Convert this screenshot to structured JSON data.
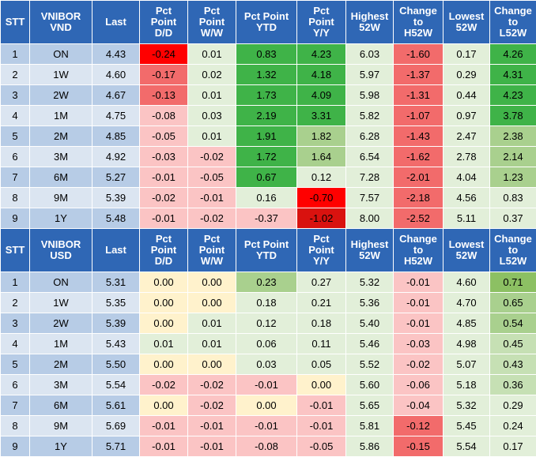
{
  "colors": {
    "header_bg": "#2f67b5",
    "row_light": "#dbe5f1",
    "row_dark": "#b7cce6",
    "neg_strong": "#ff0000",
    "neg_medium": "#f26b6b",
    "neg_light": "#fbc4c4",
    "neutral": "#fff2cc",
    "pos_light": "#e2efd9",
    "pos_medium": "#a9d08e",
    "pos_strong": "#3fb348"
  },
  "tables": [
    {
      "headers": [
        "STT",
        "VNIBOR\nVND",
        "Last",
        "Pct\nPoint\nD/D",
        "Pct\nPoint\nW/W",
        "Pct Point\nYTD",
        "Pct\nPoint\nY/Y",
        "Highest\n52W",
        "Change\nto\nH52W",
        "Lowest\n52W",
        "Change\nto\nL52W"
      ],
      "rows": [
        {
          "stt": "1",
          "tenor": "ON",
          "last": "4.43",
          "dd": "-0.24",
          "ww": "0.01",
          "ytd": "0.83",
          "yy": "4.23",
          "h52": "6.03",
          "ch52": "-1.60",
          "l52": "0.17",
          "cl52": "4.26"
        },
        {
          "stt": "2",
          "tenor": "1W",
          "last": "4.60",
          "dd": "-0.17",
          "ww": "0.02",
          "ytd": "1.32",
          "yy": "4.18",
          "h52": "5.97",
          "ch52": "-1.37",
          "l52": "0.29",
          "cl52": "4.31"
        },
        {
          "stt": "3",
          "tenor": "2W",
          "last": "4.67",
          "dd": "-0.13",
          "ww": "0.01",
          "ytd": "1.73",
          "yy": "4.09",
          "h52": "5.98",
          "ch52": "-1.31",
          "l52": "0.44",
          "cl52": "4.23"
        },
        {
          "stt": "4",
          "tenor": "1M",
          "last": "4.75",
          "dd": "-0.08",
          "ww": "0.03",
          "ytd": "2.19",
          "yy": "3.31",
          "h52": "5.82",
          "ch52": "-1.07",
          "l52": "0.97",
          "cl52": "3.78"
        },
        {
          "stt": "5",
          "tenor": "2M",
          "last": "4.85",
          "dd": "-0.05",
          "ww": "0.01",
          "ytd": "1.91",
          "yy": "1.82",
          "h52": "6.28",
          "ch52": "-1.43",
          "l52": "2.47",
          "cl52": "2.38"
        },
        {
          "stt": "6",
          "tenor": "3M",
          "last": "4.92",
          "dd": "-0.03",
          "ww": "-0.02",
          "ytd": "1.72",
          "yy": "1.64",
          "h52": "6.54",
          "ch52": "-1.62",
          "l52": "2.78",
          "cl52": "2.14"
        },
        {
          "stt": "7",
          "tenor": "6M",
          "last": "5.27",
          "dd": "-0.01",
          "ww": "-0.05",
          "ytd": "0.67",
          "yy": "0.12",
          "h52": "7.28",
          "ch52": "-2.01",
          "l52": "4.04",
          "cl52": "1.23"
        },
        {
          "stt": "8",
          "tenor": "9M",
          "last": "5.39",
          "dd": "-0.02",
          "ww": "-0.01",
          "ytd": "0.16",
          "yy": "-0.70",
          "h52": "7.57",
          "ch52": "-2.18",
          "l52": "4.56",
          "cl52": "0.83"
        },
        {
          "stt": "9",
          "tenor": "1Y",
          "last": "5.48",
          "dd": "-0.01",
          "ww": "-0.02",
          "ytd": "-0.37",
          "yy": "-1.02",
          "h52": "8.00",
          "ch52": "-2.52",
          "l52": "5.11",
          "cl52": "0.37"
        }
      ],
      "cell_colors": [
        {
          "dd": "#ff0000",
          "ww": "#e2efd9",
          "ytd": "#3fb348",
          "yy": "#3fb348",
          "h52": "#e2efd9",
          "ch52": "#f26b6b",
          "l52": "#e2efd9",
          "cl52": "#3fb348"
        },
        {
          "dd": "#f26b6b",
          "ww": "#e2efd9",
          "ytd": "#3fb348",
          "yy": "#3fb348",
          "h52": "#e2efd9",
          "ch52": "#f26b6b",
          "l52": "#e2efd9",
          "cl52": "#3fb348"
        },
        {
          "dd": "#f26b6b",
          "ww": "#e2efd9",
          "ytd": "#3fb348",
          "yy": "#3fb348",
          "h52": "#e2efd9",
          "ch52": "#f26b6b",
          "l52": "#e2efd9",
          "cl52": "#3fb348"
        },
        {
          "dd": "#fbc4c4",
          "ww": "#e2efd9",
          "ytd": "#3fb348",
          "yy": "#3fb348",
          "h52": "#e2efd9",
          "ch52": "#f26b6b",
          "l52": "#e2efd9",
          "cl52": "#3fb348"
        },
        {
          "dd": "#fbc4c4",
          "ww": "#e2efd9",
          "ytd": "#3fb348",
          "yy": "#a9d08e",
          "h52": "#e2efd9",
          "ch52": "#f26b6b",
          "l52": "#e2efd9",
          "cl52": "#a9d08e"
        },
        {
          "dd": "#fbc4c4",
          "ww": "#fbc4c4",
          "ytd": "#3fb348",
          "yy": "#a9d08e",
          "h52": "#e2efd9",
          "ch52": "#f26b6b",
          "l52": "#e2efd9",
          "cl52": "#a9d08e"
        },
        {
          "dd": "#fbc4c4",
          "ww": "#fbc4c4",
          "ytd": "#3fb348",
          "yy": "#e2efd9",
          "h52": "#e2efd9",
          "ch52": "#f26b6b",
          "l52": "#e2efd9",
          "cl52": "#a9d08e"
        },
        {
          "dd": "#fbc4c4",
          "ww": "#fbc4c4",
          "ytd": "#e2efd9",
          "yy": "#ff0000",
          "h52": "#e2efd9",
          "ch52": "#f26b6b",
          "l52": "#e2efd9",
          "cl52": "#e2efd9"
        },
        {
          "dd": "#fbc4c4",
          "ww": "#fbc4c4",
          "ytd": "#fbc4c4",
          "yy": "#d9120f",
          "h52": "#e2efd9",
          "ch52": "#f26b6b",
          "l52": "#e2efd9",
          "cl52": "#e2efd9"
        }
      ]
    },
    {
      "headers": [
        "STT",
        "VNIBOR\nUSD",
        "Last",
        "Pct\nPoint\nD/D",
        "Pct\nPoint\nW/W",
        "Pct Point\nYTD",
        "Pct\nPoint\nY/Y",
        "Highest\n52W",
        "Change\nto\nH52W",
        "Lowest\n52W",
        "Change\nto\nL52W"
      ],
      "rows": [
        {
          "stt": "1",
          "tenor": "ON",
          "last": "5.31",
          "dd": "0.00",
          "ww": "0.00",
          "ytd": "0.23",
          "yy": "0.27",
          "h52": "5.32",
          "ch52": "-0.01",
          "l52": "4.60",
          "cl52": "0.71"
        },
        {
          "stt": "2",
          "tenor": "1W",
          "last": "5.35",
          "dd": "0.00",
          "ww": "0.00",
          "ytd": "0.18",
          "yy": "0.21",
          "h52": "5.36",
          "ch52": "-0.01",
          "l52": "4.70",
          "cl52": "0.65"
        },
        {
          "stt": "3",
          "tenor": "2W",
          "last": "5.39",
          "dd": "0.00",
          "ww": "0.01",
          "ytd": "0.12",
          "yy": "0.18",
          "h52": "5.40",
          "ch52": "-0.01",
          "l52": "4.85",
          "cl52": "0.54"
        },
        {
          "stt": "4",
          "tenor": "1M",
          "last": "5.43",
          "dd": "0.01",
          "ww": "0.01",
          "ytd": "0.06",
          "yy": "0.11",
          "h52": "5.46",
          "ch52": "-0.03",
          "l52": "4.98",
          "cl52": "0.45"
        },
        {
          "stt": "5",
          "tenor": "2M",
          "last": "5.50",
          "dd": "0.00",
          "ww": "0.00",
          "ytd": "0.03",
          "yy": "0.05",
          "h52": "5.52",
          "ch52": "-0.02",
          "l52": "5.07",
          "cl52": "0.43"
        },
        {
          "stt": "6",
          "tenor": "3M",
          "last": "5.54",
          "dd": "-0.02",
          "ww": "-0.02",
          "ytd": "-0.01",
          "yy": "0.00",
          "h52": "5.60",
          "ch52": "-0.06",
          "l52": "5.18",
          "cl52": "0.36"
        },
        {
          "stt": "7",
          "tenor": "6M",
          "last": "5.61",
          "dd": "0.00",
          "ww": "-0.02",
          "ytd": "0.00",
          "yy": "-0.01",
          "h52": "5.65",
          "ch52": "-0.04",
          "l52": "5.32",
          "cl52": "0.29"
        },
        {
          "stt": "8",
          "tenor": "9M",
          "last": "5.69",
          "dd": "-0.01",
          "ww": "-0.01",
          "ytd": "-0.01",
          "yy": "-0.01",
          "h52": "5.81",
          "ch52": "-0.12",
          "l52": "5.45",
          "cl52": "0.24"
        },
        {
          "stt": "9",
          "tenor": "1Y",
          "last": "5.71",
          "dd": "-0.01",
          "ww": "-0.01",
          "ytd": "-0.08",
          "yy": "-0.05",
          "h52": "5.86",
          "ch52": "-0.15",
          "l52": "5.54",
          "cl52": "0.17"
        }
      ],
      "cell_colors": [
        {
          "dd": "#fff2cc",
          "ww": "#fff2cc",
          "ytd": "#a9d08e",
          "yy": "#e2efd9",
          "h52": "#e2efd9",
          "ch52": "#fbc4c4",
          "l52": "#e2efd9",
          "cl52": "#8cc063"
        },
        {
          "dd": "#fff2cc",
          "ww": "#fff2cc",
          "ytd": "#e2efd9",
          "yy": "#e2efd9",
          "h52": "#e2efd9",
          "ch52": "#fbc4c4",
          "l52": "#e2efd9",
          "cl52": "#a9d08e"
        },
        {
          "dd": "#fff2cc",
          "ww": "#e2efd9",
          "ytd": "#e2efd9",
          "yy": "#e2efd9",
          "h52": "#e2efd9",
          "ch52": "#fbc4c4",
          "l52": "#e2efd9",
          "cl52": "#a9d08e"
        },
        {
          "dd": "#e2efd9",
          "ww": "#e2efd9",
          "ytd": "#e2efd9",
          "yy": "#e2efd9",
          "h52": "#e2efd9",
          "ch52": "#fbc4c4",
          "l52": "#e2efd9",
          "cl52": "#c6e0b4"
        },
        {
          "dd": "#fff2cc",
          "ww": "#fff2cc",
          "ytd": "#e2efd9",
          "yy": "#e2efd9",
          "h52": "#e2efd9",
          "ch52": "#fbc4c4",
          "l52": "#e2efd9",
          "cl52": "#c6e0b4"
        },
        {
          "dd": "#fbc4c4",
          "ww": "#fbc4c4",
          "ytd": "#fbc4c4",
          "yy": "#fff2cc",
          "h52": "#e2efd9",
          "ch52": "#fbc4c4",
          "l52": "#e2efd9",
          "cl52": "#c6e0b4"
        },
        {
          "dd": "#fff2cc",
          "ww": "#fbc4c4",
          "ytd": "#fff2cc",
          "yy": "#fbc4c4",
          "h52": "#e2efd9",
          "ch52": "#fbc4c4",
          "l52": "#e2efd9",
          "cl52": "#e2efd9"
        },
        {
          "dd": "#fbc4c4",
          "ww": "#fbc4c4",
          "ytd": "#fbc4c4",
          "yy": "#fbc4c4",
          "h52": "#e2efd9",
          "ch52": "#f26b6b",
          "l52": "#e2efd9",
          "cl52": "#e2efd9"
        },
        {
          "dd": "#fbc4c4",
          "ww": "#fbc4c4",
          "ytd": "#fbc4c4",
          "yy": "#fbc4c4",
          "h52": "#e2efd9",
          "ch52": "#f26b6b",
          "l52": "#e2efd9",
          "cl52": "#e2efd9"
        }
      ]
    }
  ]
}
